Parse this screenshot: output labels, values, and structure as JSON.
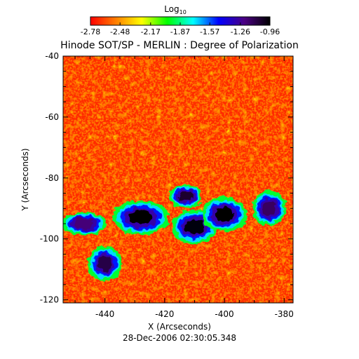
{
  "chart_data": {
    "type": "heatmap",
    "title": "Hinode SOT/SP - MERLIN : Degree of Polarization",
    "subtitle": "28-Dec-2006 02:30:05.348",
    "xlabel": "X (Arcseconds)",
    "ylabel": "Y (Arcseconds)",
    "x_ticks": [
      "-440",
      "-420",
      "-400",
      "-380"
    ],
    "x_tick_values": [
      -440,
      -420,
      -400,
      -380
    ],
    "y_ticks": [
      "-120",
      "-100",
      "-80",
      "-60",
      "-40"
    ],
    "y_tick_values": [
      -120,
      -100,
      -80,
      -60,
      -40
    ],
    "xlim": [
      -454,
      -377
    ],
    "ylim": [
      -121,
      -40
    ],
    "colorbar": {
      "label_base": "Log",
      "label_sub": "10",
      "ticks": [
        "-2.78",
        "-2.48",
        "-2.17",
        "-1.87",
        "-1.57",
        "-1.26",
        "-0.96"
      ],
      "tick_values": [
        -2.78,
        -2.48,
        -2.17,
        -1.87,
        -1.57,
        -1.26,
        -0.96
      ],
      "range": [
        -2.78,
        -0.96
      ]
    },
    "colormap": [
      "#ff0000",
      "#ff7f00",
      "#ffff00",
      "#00ff00",
      "#00ffff",
      "#0000ff",
      "#4b0082",
      "#000000"
    ],
    "features": [
      {
        "cx": -428,
        "cy": -93,
        "rx": 5,
        "ry": 3,
        "v": -0.97
      },
      {
        "cx": -410,
        "cy": -96,
        "rx": 4,
        "ry": 3,
        "v": -0.98
      },
      {
        "cx": -400,
        "cy": -92,
        "rx": 4,
        "ry": 3,
        "v": -0.97
      },
      {
        "cx": -413,
        "cy": -86,
        "rx": 3,
        "ry": 2,
        "v": -1.05
      },
      {
        "cx": -447,
        "cy": -95,
        "rx": 4,
        "ry": 2,
        "v": -1.2
      },
      {
        "cx": -440,
        "cy": -108,
        "rx": 3,
        "ry": 3,
        "v": -1.1
      },
      {
        "cx": -385,
        "cy": -90,
        "rx": 3,
        "ry": 3,
        "v": -1.15
      }
    ]
  }
}
